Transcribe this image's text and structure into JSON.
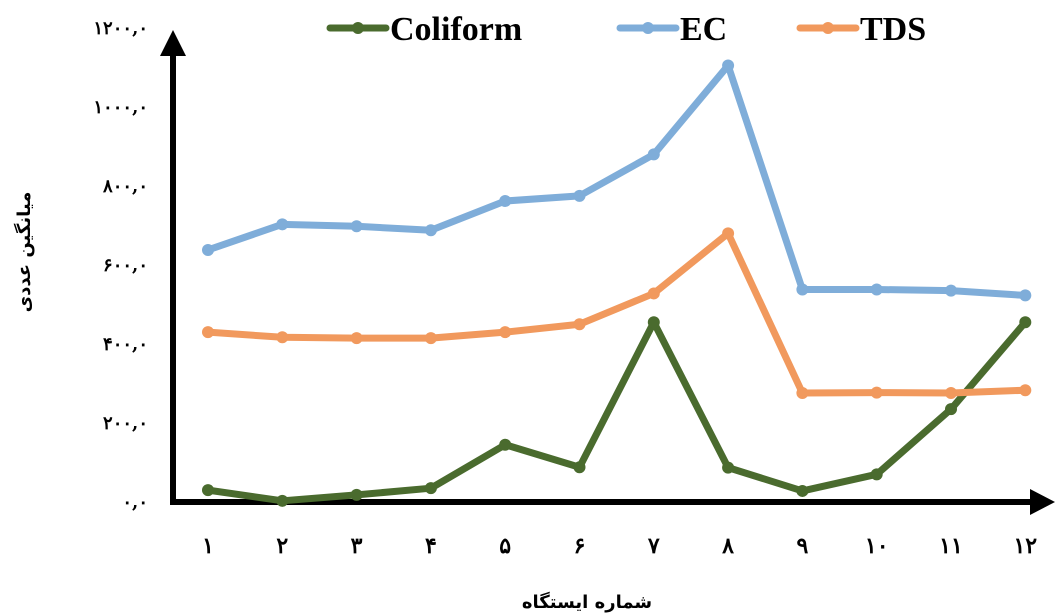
{
  "chart_data": {
    "type": "line",
    "title": "",
    "xlabel": "شماره ایستگاه",
    "ylabel": "میانگین عددی",
    "categories": [
      "۱",
      "۲",
      "۳",
      "۴",
      "۵",
      "۶",
      "۷",
      "۸",
      "۹",
      "۱۰",
      "۱۱",
      "۱۲"
    ],
    "yticks": [
      "۰,۰",
      "۲۰۰,۰",
      "۴۰۰,۰",
      "۶۰۰,۰",
      "۸۰۰,۰",
      "۱۰۰۰,۰",
      "۱۲۰۰,۰"
    ],
    "ytick_values": [
      0,
      200,
      400,
      600,
      800,
      1000,
      1200
    ],
    "ylim": [
      0,
      1200
    ],
    "grid": false,
    "legend_position": "top",
    "series": [
      {
        "name": "Coliform",
        "color": "#4a6b2e",
        "values": [
          30,
          3,
          18,
          35,
          145,
          88,
          455,
          87,
          28,
          70,
          235,
          455
        ]
      },
      {
        "name": "EC",
        "color": "#7fadd9",
        "values": [
          638,
          703,
          698,
          688,
          762,
          775,
          880,
          1105,
          538,
          538,
          535,
          523
        ]
      },
      {
        "name": "TDS",
        "color": "#f1995d",
        "values": [
          430,
          417,
          415,
          415,
          430,
          450,
          528,
          680,
          276,
          277,
          276,
          283
        ]
      }
    ]
  }
}
